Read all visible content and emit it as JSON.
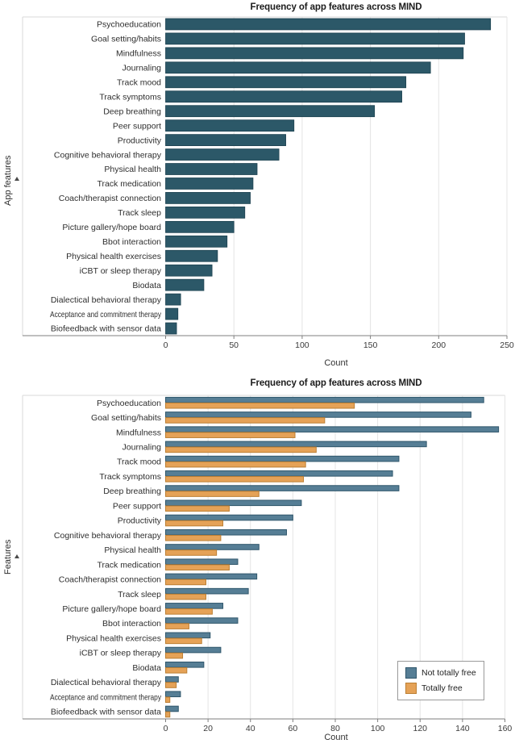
{
  "chart_data": [
    {
      "type": "bar",
      "orientation": "horizontal",
      "title": "Frequency of app features across MIND",
      "xlabel": "Count",
      "ylabel": "App features",
      "xlim": [
        0,
        250
      ],
      "xticks": [
        0,
        50,
        100,
        150,
        200,
        250
      ],
      "grid": "vertical light gridlines at major ticks",
      "bar_color": "#2C5868",
      "bar_border": "#1D4250",
      "categories": [
        "Psychoeducation",
        "Goal setting/habits",
        "Mindfulness",
        "Journaling",
        "Track mood",
        "Track symptoms",
        "Deep breathing",
        "Peer support",
        "Productivity",
        "Cognitive behavioral therapy",
        "Physical health",
        "Track medication",
        "Coach/therapist connection",
        "Track sleep",
        "Picture gallery/hope board",
        "Bbot interaction",
        "Physical health exercises",
        "iCBT or sleep therapy",
        "Biodata",
        "Dialectical behavioral therapy",
        "Acceptance and commitment therapy",
        "Biofeedback with sensor data"
      ],
      "values": [
        238,
        219,
        218,
        194,
        176,
        173,
        153,
        94,
        88,
        83,
        67,
        64,
        62,
        58,
        50,
        45,
        38,
        34,
        28,
        11,
        9,
        8
      ]
    },
    {
      "type": "bar",
      "orientation": "horizontal",
      "grouped": true,
      "title": "Frequency of app features across MIND",
      "xlabel": "Count",
      "ylabel": "Features",
      "xlim": [
        0,
        160
      ],
      "xticks": [
        0,
        20,
        40,
        60,
        80,
        100,
        120,
        140,
        160
      ],
      "grid": "vertical light gridlines at major ticks",
      "legend": {
        "position": "lower right",
        "items": [
          "Not totally free",
          "Totally free"
        ]
      },
      "categories": [
        "Psychoeducation",
        "Goal setting/habits",
        "Mindfulness",
        "Journaling",
        "Track mood",
        "Track symptoms",
        "Deep breathing",
        "Peer support",
        "Productivity",
        "Cognitive behavioral therapy",
        "Physical health",
        "Track medication",
        "Coach/therapist connection",
        "Track sleep",
        "Picture gallery/hope board",
        "Bbot interaction",
        "Physical health exercises",
        "iCBT or sleep therapy",
        "Biodata",
        "Dialectical behavioral therapy",
        "Acceptance and commitment therapy",
        "Biofeedback with sensor data"
      ],
      "series": [
        {
          "name": "Not totally free",
          "color": "#567E95",
          "border": "#2F566B",
          "values": [
            150,
            144,
            157,
            123,
            110,
            107,
            110,
            64,
            60,
            57,
            44,
            34,
            43,
            39,
            27,
            34,
            21,
            26,
            18,
            6,
            7,
            6
          ]
        },
        {
          "name": "Totally free",
          "color": "#E5A257",
          "border": "#BC7F33",
          "values": [
            89,
            75,
            61,
            71,
            66,
            65,
            44,
            30,
            27,
            26,
            24,
            30,
            19,
            19,
            22,
            11,
            17,
            8,
            10,
            5,
            2,
            2
          ]
        }
      ]
    }
  ]
}
